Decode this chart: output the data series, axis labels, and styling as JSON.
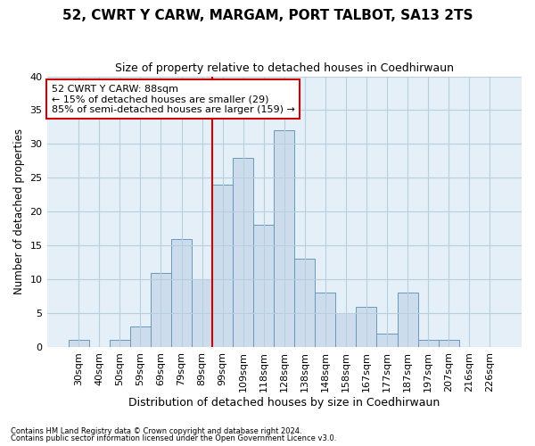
{
  "title": "52, CWRT Y CARW, MARGAM, PORT TALBOT, SA13 2TS",
  "subtitle": "Size of property relative to detached houses in Coedhirwaun",
  "xlabel": "Distribution of detached houses by size in Coedhirwaun",
  "ylabel": "Number of detached properties",
  "footnote1": "Contains HM Land Registry data © Crown copyright and database right 2024.",
  "footnote2": "Contains public sector information licensed under the Open Government Licence v3.0.",
  "bar_labels": [
    "30sqm",
    "40sqm",
    "50sqm",
    "59sqm",
    "69sqm",
    "79sqm",
    "89sqm",
    "99sqm",
    "109sqm",
    "118sqm",
    "128sqm",
    "138sqm",
    "148sqm",
    "158sqm",
    "167sqm",
    "177sqm",
    "187sqm",
    "197sqm",
    "207sqm",
    "216sqm",
    "226sqm"
  ],
  "bar_values": [
    1,
    0,
    1,
    3,
    11,
    16,
    10,
    24,
    28,
    18,
    32,
    13,
    8,
    5,
    6,
    2,
    8,
    1,
    1,
    0,
    0
  ],
  "bar_color": "#ccdcec",
  "bar_edge_color": "#6699bb",
  "grid_color": "#b8cfe0",
  "background_color": "#e4eff8",
  "vline_color": "#cc0000",
  "annotation_text": "52 CWRT Y CARW: 88sqm\n← 15% of detached houses are smaller (29)\n85% of semi-detached houses are larger (159) →",
  "annotation_box_color": "#ffffff",
  "annotation_box_edgecolor": "#cc0000",
  "ylim": [
    0,
    40
  ],
  "yticks": [
    0,
    5,
    10,
    15,
    20,
    25,
    30,
    35,
    40
  ]
}
